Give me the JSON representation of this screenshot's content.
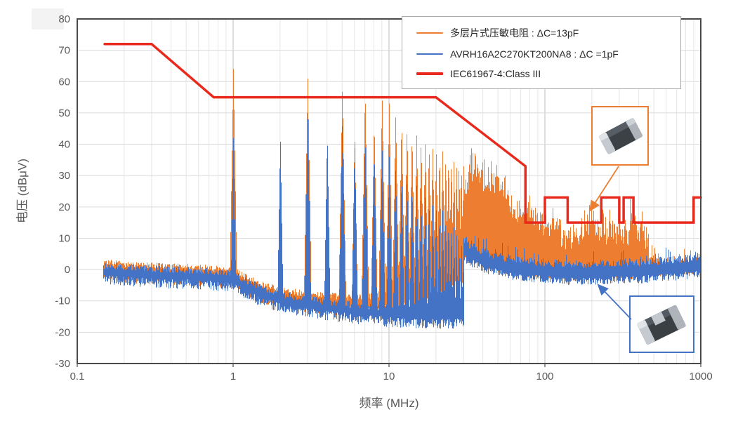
{
  "chart_data": {
    "type": "line",
    "title": "",
    "xlabel": "频率 (MHz)",
    "ylabel": "电压 (dBμV)",
    "x_scale": "log",
    "xlim": [
      0.1,
      1000
    ],
    "ylim": [
      -30,
      80
    ],
    "grid": true,
    "legend_position": "top-right",
    "start_mhz": 0.15,
    "transition_mhz": 30.2,
    "x_ticks": [
      {
        "label": "0.1",
        "value": 0.1
      },
      {
        "label": "1",
        "value": 1
      },
      {
        "label": "10",
        "value": 10
      },
      {
        "label": "100",
        "value": 100
      },
      {
        "label": "1000",
        "value": 1000
      }
    ],
    "y_ticks": [
      {
        "label": "80",
        "value": 80
      },
      {
        "label": "70",
        "value": 70
      },
      {
        "label": "60",
        "value": 60
      },
      {
        "label": "50",
        "value": 50
      },
      {
        "label": "40",
        "value": 40
      },
      {
        "label": "30",
        "value": 30
      },
      {
        "label": "20",
        "value": 20
      },
      {
        "label": "10",
        "value": 10
      },
      {
        "label": "0",
        "value": 0
      },
      {
        "label": "-10",
        "value": -10
      },
      {
        "label": "-20",
        "value": -20
      },
      {
        "label": "-30",
        "value": -30
      }
    ],
    "series": [
      {
        "name": "多层片式压敏电阻 : ΔC=13pF",
        "color": "#ED7D31",
        "kind": "noise-spectrum",
        "synth": {
          "floor": [
            [
              0.15,
              0.5
            ],
            [
              0.3,
              -0.5
            ],
            [
              0.6,
              -1
            ],
            [
              1,
              -2
            ],
            [
              1.3,
              -5
            ],
            [
              1.6,
              -7
            ],
            [
              2,
              -8
            ],
            [
              2.5,
              -9
            ],
            [
              3,
              -9.5
            ],
            [
              4,
              -10
            ],
            [
              5,
              -10.5
            ],
            [
              6,
              -10.5
            ],
            [
              8,
              -10
            ],
            [
              10,
              -9
            ],
            [
              12,
              -8.5
            ],
            [
              15,
              -8
            ],
            [
              18,
              -7
            ],
            [
              20,
              -6
            ],
            [
              23,
              -4.5
            ],
            [
              25,
              -3
            ],
            [
              28,
              -1
            ],
            [
              30,
              0
            ]
          ],
          "comb_spacing_mhz": 1,
          "peaks": [
            [
              1,
              64
            ],
            [
              3,
              62
            ],
            [
              5,
              59
            ],
            [
              6,
              44
            ],
            [
              7,
              58
            ],
            [
              8,
              49
            ],
            [
              9,
              56
            ],
            [
              10,
              53
            ],
            [
              11,
              51
            ],
            [
              12,
              49
            ],
            [
              13,
              47
            ],
            [
              14,
              45
            ],
            [
              15,
              44
            ],
            [
              16,
              43
            ],
            [
              17,
              42
            ],
            [
              18,
              41
            ],
            [
              19,
              40
            ],
            [
              20,
              39
            ],
            [
              21,
              38.5
            ],
            [
              22,
              38
            ],
            [
              23,
              37.5
            ],
            [
              24,
              37
            ],
            [
              25,
              36.5
            ],
            [
              26,
              36
            ],
            [
              27,
              35.5
            ],
            [
              28,
              35
            ],
            [
              29,
              34.5
            ],
            [
              30,
              34
            ]
          ],
          "envelope_above_30mhz": [
            [
              30.3,
              24
            ],
            [
              31,
              28
            ],
            [
              32,
              31
            ],
            [
              33,
              34
            ],
            [
              35,
              32
            ],
            [
              37,
              33
            ],
            [
              40,
              30
            ],
            [
              43,
              28.5
            ],
            [
              46,
              30
            ],
            [
              50,
              27
            ],
            [
              54,
              25.5
            ],
            [
              58,
              23
            ],
            [
              62,
              21
            ],
            [
              66,
              19.5
            ],
            [
              70,
              18
            ],
            [
              75,
              19
            ],
            [
              80,
              17.5
            ],
            [
              85,
              16
            ],
            [
              90,
              17.5
            ],
            [
              95,
              14.5
            ],
            [
              100,
              13
            ],
            [
              105,
              14.5
            ],
            [
              110,
              16
            ],
            [
              118,
              15
            ],
            [
              125,
              13
            ],
            [
              132,
              11.5
            ],
            [
              140,
              10
            ],
            [
              148,
              11.5
            ],
            [
              155,
              11
            ],
            [
              165,
              12
            ],
            [
              175,
              14
            ],
            [
              180,
              16
            ],
            [
              190,
              14
            ],
            [
              200,
              17.5
            ],
            [
              208,
              15
            ],
            [
              218,
              13
            ],
            [
              228,
              14
            ],
            [
              235,
              16
            ],
            [
              245,
              13.5
            ],
            [
              255,
              12.5
            ],
            [
              262,
              14.5
            ],
            [
              272,
              13
            ],
            [
              282,
              11.5
            ],
            [
              290,
              13.5
            ],
            [
              300,
              17
            ],
            [
              308,
              15
            ],
            [
              318,
              12.5
            ],
            [
              328,
              14.5
            ],
            [
              338,
              13
            ],
            [
              348,
              16
            ],
            [
              358,
              18.5
            ],
            [
              368,
              18
            ],
            [
              378,
              15.5
            ],
            [
              388,
              13.5
            ],
            [
              398,
              14
            ],
            [
              408,
              15.5
            ],
            [
              418,
              13
            ],
            [
              428,
              15
            ],
            [
              438,
              11.5
            ],
            [
              448,
              9.5
            ],
            [
              458,
              7.5
            ],
            [
              468,
              5
            ],
            [
              480,
              3
            ],
            [
              495,
              2.2
            ],
            [
              520,
              1.8
            ],
            [
              560,
              1.4
            ],
            [
              620,
              1.2
            ],
            [
              700,
              1
            ],
            [
              800,
              1
            ],
            [
              900,
              1.4
            ],
            [
              1000,
              2
            ]
          ]
        }
      },
      {
        "name": "AVRH16A2C270KT200NA8 : ΔC =1pF",
        "color": "#4472C4",
        "kind": "noise-spectrum",
        "synth": {
          "floor": [
            [
              0.15,
              -0.5
            ],
            [
              0.3,
              -1.5
            ],
            [
              0.6,
              -2
            ],
            [
              1,
              -3
            ],
            [
              1.3,
              -6
            ],
            [
              1.6,
              -8
            ],
            [
              2,
              -9.5
            ],
            [
              2.5,
              -10.5
            ],
            [
              3,
              -11
            ],
            [
              4,
              -12
            ],
            [
              5,
              -12.5
            ],
            [
              6,
              -13
            ],
            [
              8,
              -13.5
            ],
            [
              10,
              -14
            ],
            [
              15,
              -14.5
            ],
            [
              20,
              -14.5
            ],
            [
              25,
              -14.5
            ],
            [
              30,
              -14.5
            ]
          ],
          "comb_spacing_mhz": 1,
          "peaks": [
            [
              1,
              42
            ],
            [
              2,
              43
            ],
            [
              3,
              49
            ],
            [
              4,
              44
            ],
            [
              5,
              48
            ],
            [
              6,
              42
            ],
            [
              7,
              44
            ],
            [
              8,
              40
            ],
            [
              9,
              40
            ],
            [
              10,
              36
            ],
            [
              11,
              34
            ],
            [
              12,
              32
            ],
            [
              13,
              31
            ],
            [
              14,
              29
            ],
            [
              15,
              28
            ],
            [
              16,
              26
            ],
            [
              17,
              25
            ],
            [
              18,
              23
            ],
            [
              19,
              22
            ],
            [
              20,
              21
            ],
            [
              21,
              20
            ],
            [
              22,
              19
            ],
            [
              23,
              18
            ],
            [
              24,
              17
            ],
            [
              25,
              16
            ],
            [
              26,
              15
            ],
            [
              27,
              14
            ],
            [
              28,
              13
            ],
            [
              29,
              12
            ],
            [
              30,
              11
            ]
          ],
          "band_above_30mhz": [
            [
              30.3,
              7
            ],
            [
              32,
              6
            ],
            [
              34,
              5.2
            ],
            [
              36,
              4.6
            ],
            [
              38,
              4.1
            ],
            [
              40,
              3.6
            ],
            [
              45,
              2.6
            ],
            [
              50,
              2.1
            ],
            [
              55,
              1.6
            ],
            [
              60,
              1.2
            ],
            [
              70,
              0.7
            ],
            [
              80,
              0.4
            ],
            [
              100,
              0
            ],
            [
              130,
              -0.4
            ],
            [
              160,
              -0.5
            ],
            [
              200,
              -0.5
            ],
            [
              250,
              -0.2
            ],
            [
              300,
              0
            ],
            [
              400,
              0
            ],
            [
              500,
              0.4
            ],
            [
              600,
              0.8
            ],
            [
              700,
              1
            ],
            [
              800,
              1.3
            ],
            [
              900,
              1.6
            ],
            [
              1000,
              2
            ]
          ]
        }
      },
      {
        "name": "IEC61967-4:Class III",
        "color": "#E8291C",
        "kind": "limit-line",
        "line_width": 3.5,
        "points": [
          [
            0.15,
            72
          ],
          [
            0.3,
            72
          ],
          [
            0.75,
            55
          ],
          [
            20,
            55
          ],
          [
            75,
            33
          ],
          [
            75,
            15
          ],
          [
            100,
            15
          ],
          [
            100,
            23
          ],
          [
            140,
            23
          ],
          [
            140,
            15
          ],
          [
            230,
            15
          ],
          [
            230,
            23
          ],
          [
            300,
            23
          ],
          [
            300,
            15
          ],
          [
            320,
            15
          ],
          [
            320,
            23
          ],
          [
            370,
            23
          ],
          [
            370,
            15
          ],
          [
            900,
            15
          ],
          [
            900,
            23
          ],
          [
            1000,
            23
          ]
        ]
      }
    ]
  },
  "annotations": {
    "orange_inset": {
      "description": "multilayer chip varistor product photo",
      "border_color": "#ED7D31",
      "points_to": "orange trace"
    },
    "blue_inset": {
      "description": "AVRH16A2C270KT200NA8 product photo",
      "border_color": "#4472C4",
      "points_to": "blue trace"
    }
  },
  "colors": {
    "grid_minor": "#e6e6e6",
    "grid_major": "#c9c9c9",
    "grid_horizontal": "#dadada",
    "axis": "#4a4a4a",
    "tick_text": "#595959",
    "legend_border": "#ababab",
    "legend_text": "#262626"
  }
}
